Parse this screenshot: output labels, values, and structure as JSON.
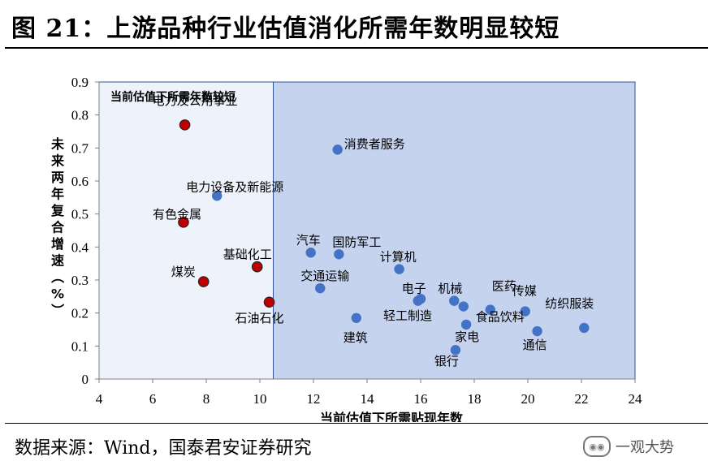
{
  "figure": {
    "title": "图 21：上游品种行业估值消化所需年数明显较短",
    "source": "数据来源：Wind，国泰君安证券研究",
    "watermark": "一观大势"
  },
  "colors": {
    "point_blue": "#4472c4",
    "point_red": "#c00000",
    "region_left": "#eef2fa",
    "region_right": "#c5d3ee",
    "region_border": "#2f5597"
  },
  "chart_data": {
    "type": "scatter",
    "xlabel": "当前估值下所需贴现年数",
    "ylabel": "未来两年复合增速（%）",
    "xlim": [
      4,
      24
    ],
    "ylim": [
      0,
      0.9
    ],
    "x_ticks": [
      4,
      6,
      8,
      10,
      12,
      14,
      16,
      18,
      20,
      22,
      24
    ],
    "y_ticks": [
      "0",
      "0.1",
      "0.2",
      "0.3",
      "0.4",
      "0.5",
      "0.6",
      "0.7",
      "0.8",
      "0.9"
    ],
    "grid": false,
    "region_split_x": 10.5,
    "region_label": "当前估值下所需年数较短",
    "points": [
      {
        "name": "电力及公用事业",
        "x": 7.2,
        "y": 0.77,
        "highlight": true
      },
      {
        "name": "消费者服务",
        "x": 12.9,
        "y": 0.695,
        "highlight": false
      },
      {
        "name": "电力设备及新能源",
        "x": 8.4,
        "y": 0.555,
        "highlight": false
      },
      {
        "name": "有色金属",
        "x": 7.15,
        "y": 0.475,
        "highlight": true
      },
      {
        "name": "汽车",
        "x": 11.9,
        "y": 0.383,
        "highlight": false
      },
      {
        "name": "国防军工",
        "x": 12.95,
        "y": 0.378,
        "highlight": false
      },
      {
        "name": "计算机",
        "x": 15.2,
        "y": 0.333,
        "highlight": false
      },
      {
        "name": "基础化工",
        "x": 9.9,
        "y": 0.34,
        "highlight": true
      },
      {
        "name": "煤炭",
        "x": 7.9,
        "y": 0.295,
        "highlight": true
      },
      {
        "name": "交通运输",
        "x": 12.25,
        "y": 0.275,
        "highlight": false
      },
      {
        "name": "石油石化",
        "x": 10.35,
        "y": 0.233,
        "highlight": true
      },
      {
        "name": "电子",
        "x": 15.9,
        "y": 0.237,
        "highlight": false
      },
      {
        "name": "机械",
        "x": 17.25,
        "y": 0.237,
        "highlight": false
      },
      {
        "name": "轻工制造",
        "x": 16.0,
        "y": 0.243,
        "highlight": false
      },
      {
        "name": "医药",
        "x": 17.6,
        "y": 0.22,
        "highlight": false
      },
      {
        "name": "食品饮料",
        "x": 18.6,
        "y": 0.21,
        "highlight": false
      },
      {
        "name": "传媒",
        "x": 19.9,
        "y": 0.205,
        "highlight": false
      },
      {
        "name": "建筑",
        "x": 13.6,
        "y": 0.185,
        "highlight": false
      },
      {
        "name": "家电",
        "x": 17.7,
        "y": 0.165,
        "highlight": false
      },
      {
        "name": "纺织服装",
        "x": 22.1,
        "y": 0.155,
        "highlight": false
      },
      {
        "name": "通信",
        "x": 20.35,
        "y": 0.145,
        "highlight": false
      },
      {
        "name": "银行",
        "x": 17.3,
        "y": 0.088,
        "highlight": false
      }
    ]
  }
}
